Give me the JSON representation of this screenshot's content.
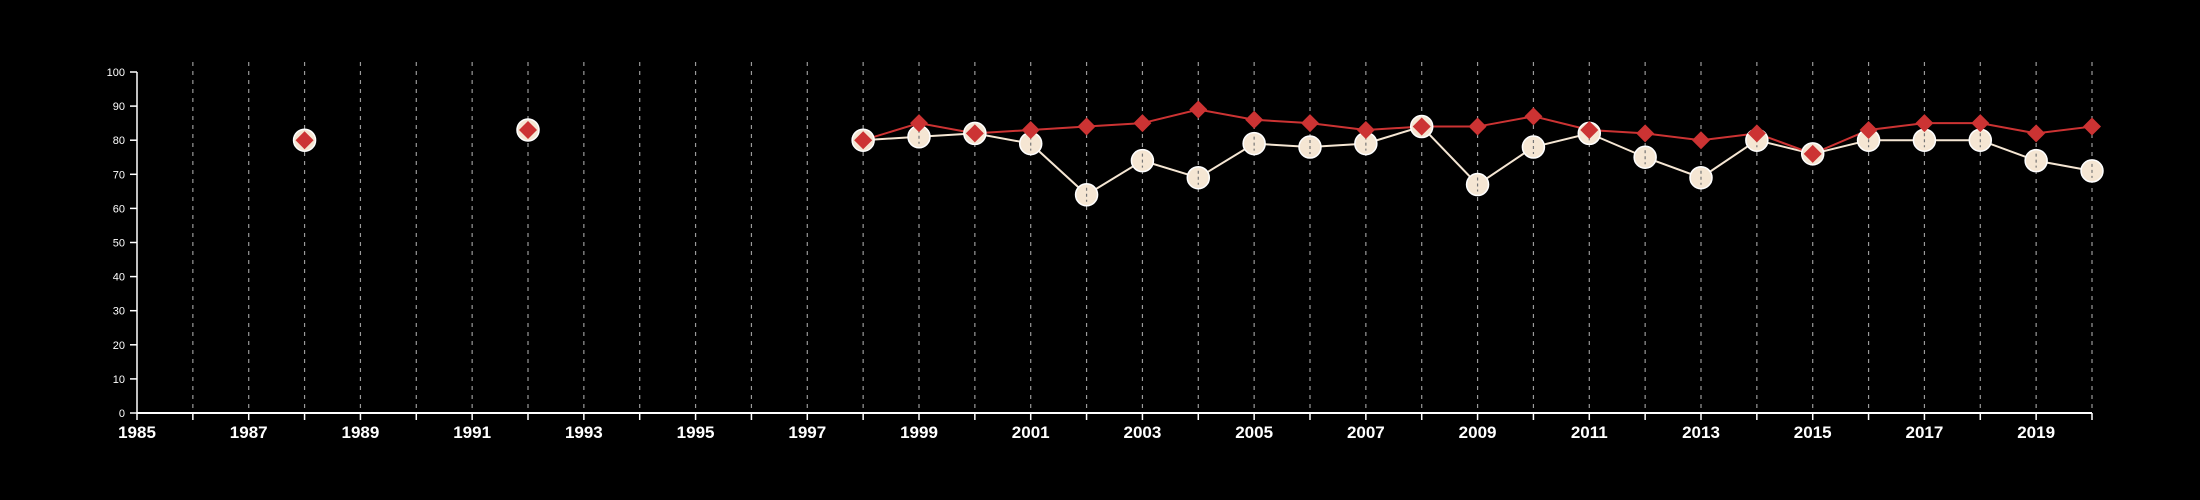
{
  "chart_data": {
    "type": "line",
    "title": "",
    "xlabel": "",
    "ylabel": "",
    "xlim": [
      1985,
      2020
    ],
    "ylim": [
      0,
      100
    ],
    "yticks": [
      0,
      10,
      20,
      30,
      40,
      50,
      60,
      70,
      80,
      90,
      100
    ],
    "xticks": [
      1985,
      1987,
      1989,
      1991,
      1993,
      1995,
      1997,
      1999,
      2001,
      2003,
      2005,
      2007,
      2009,
      2011,
      2013,
      2015,
      2017,
      2019
    ],
    "vertical_gridlines": "dashed, every year",
    "background": "#000000",
    "legend": "none",
    "series": [
      {
        "color": "#f5e6d3",
        "marker": "circle",
        "points": [
          {
            "x": 1988,
            "y": 80
          },
          {
            "x": 1992,
            "y": 83
          },
          {
            "x": 1998,
            "y": 80
          },
          {
            "x": 1999,
            "y": 81
          },
          {
            "x": 2000,
            "y": 82
          },
          {
            "x": 2001,
            "y": 79
          },
          {
            "x": 2002,
            "y": 64
          },
          {
            "x": 2003,
            "y": 74
          },
          {
            "x": 2004,
            "y": 69
          },
          {
            "x": 2005,
            "y": 79
          },
          {
            "x": 2006,
            "y": 78
          },
          {
            "x": 2007,
            "y": 79
          },
          {
            "x": 2008,
            "y": 84
          },
          {
            "x": 2009,
            "y": 67
          },
          {
            "x": 2010,
            "y": 78
          },
          {
            "x": 2011,
            "y": 82
          },
          {
            "x": 2012,
            "y": 75
          },
          {
            "x": 2013,
            "y": 69
          },
          {
            "x": 2014,
            "y": 80
          },
          {
            "x": 2015,
            "y": 76
          },
          {
            "x": 2016,
            "y": 80
          },
          {
            "x": 2017,
            "y": 80
          },
          {
            "x": 2018,
            "y": 80
          },
          {
            "x": 2019,
            "y": 74
          },
          {
            "x": 2020,
            "y": 71
          }
        ]
      },
      {
        "color": "#cc3333",
        "marker": "diamond",
        "points": [
          {
            "x": 1988,
            "y": 80
          },
          {
            "x": 1992,
            "y": 83
          },
          {
            "x": 1998,
            "y": 80
          },
          {
            "x": 1999,
            "y": 85
          },
          {
            "x": 2000,
            "y": 82
          },
          {
            "x": 2001,
            "y": 83
          },
          {
            "x": 2002,
            "y": 84
          },
          {
            "x": 2003,
            "y": 85
          },
          {
            "x": 2004,
            "y": 89
          },
          {
            "x": 2005,
            "y": 86
          },
          {
            "x": 2006,
            "y": 85
          },
          {
            "x": 2007,
            "y": 83
          },
          {
            "x": 2008,
            "y": 84
          },
          {
            "x": 2009,
            "y": 84
          },
          {
            "x": 2010,
            "y": 87
          },
          {
            "x": 2011,
            "y": 83
          },
          {
            "x": 2012,
            "y": 82
          },
          {
            "x": 2013,
            "y": 80
          },
          {
            "x": 2014,
            "y": 82
          },
          {
            "x": 2015,
            "y": 76
          },
          {
            "x": 2016,
            "y": 83
          },
          {
            "x": 2017,
            "y": 85
          },
          {
            "x": 2018,
            "y": 85
          },
          {
            "x": 2019,
            "y": 82
          },
          {
            "x": 2020,
            "y": 84
          }
        ]
      }
    ]
  }
}
